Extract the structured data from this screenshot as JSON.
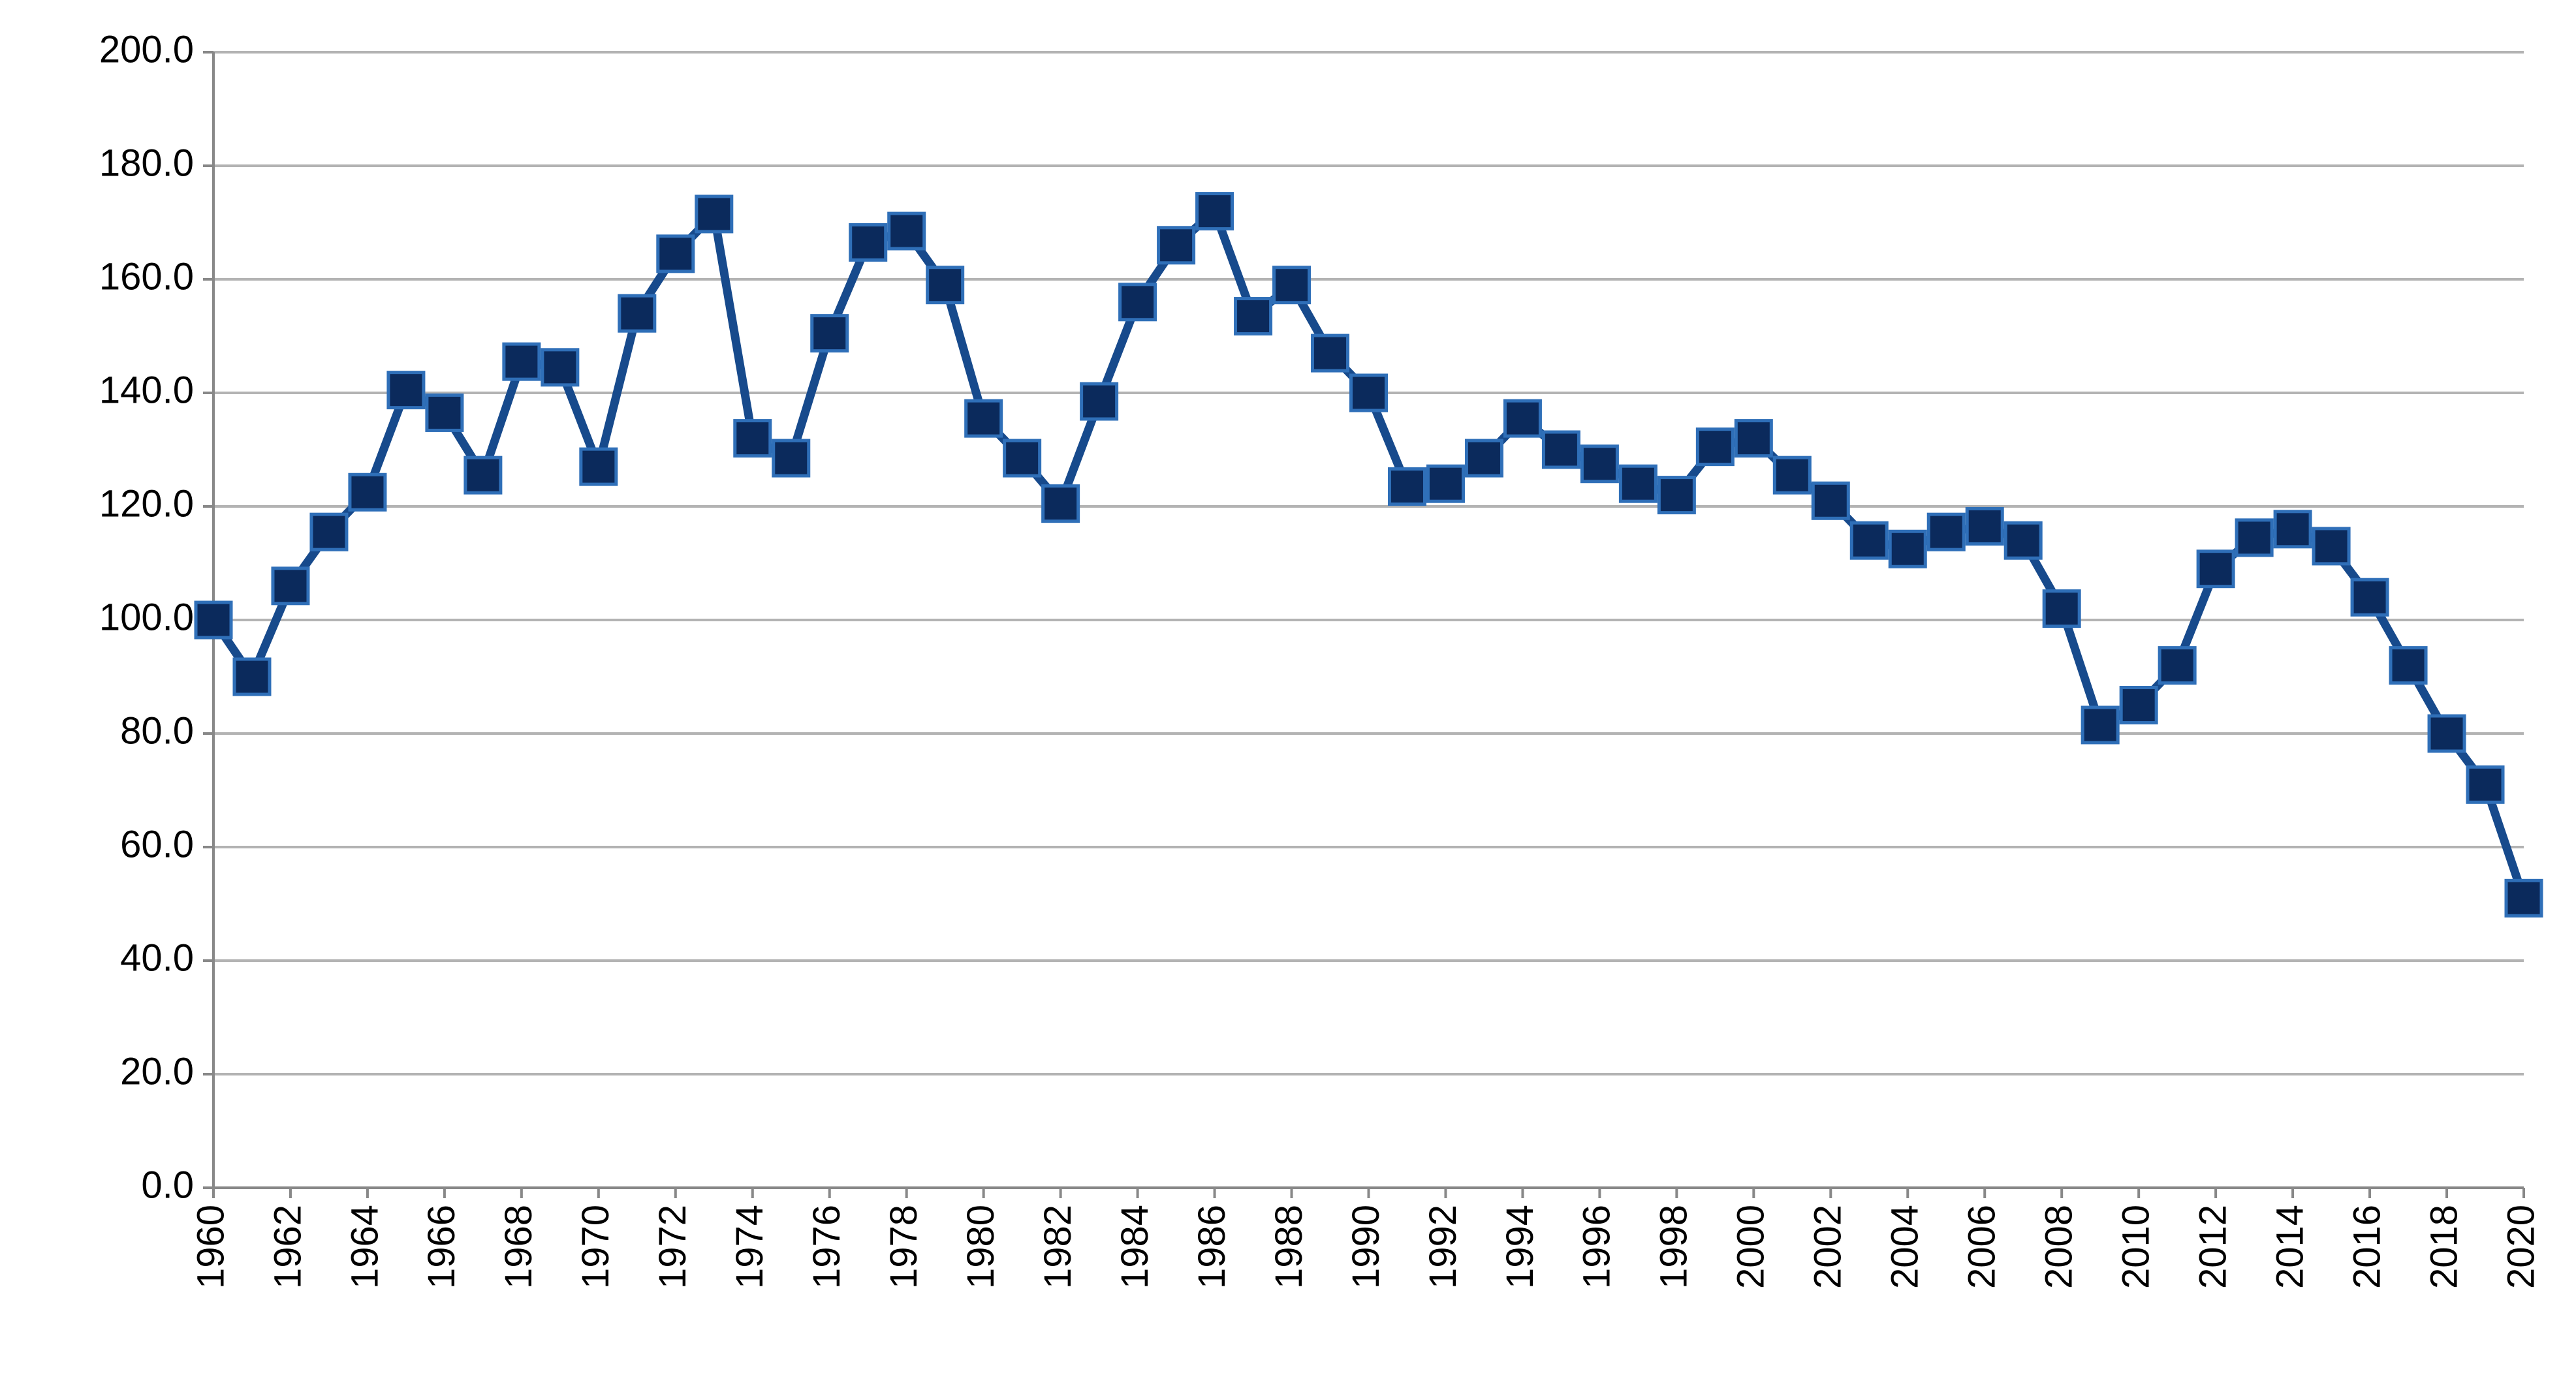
{
  "chart_data": {
    "type": "line",
    "x": [
      1960,
      1961,
      1962,
      1963,
      1964,
      1965,
      1966,
      1967,
      1968,
      1969,
      1970,
      1971,
      1972,
      1973,
      1974,
      1975,
      1976,
      1977,
      1978,
      1979,
      1980,
      1981,
      1982,
      1983,
      1984,
      1985,
      1986,
      1987,
      1988,
      1989,
      1990,
      1991,
      1992,
      1993,
      1994,
      1995,
      1996,
      1997,
      1998,
      1999,
      2000,
      2001,
      2002,
      2003,
      2004,
      2005,
      2006,
      2007,
      2008,
      2009,
      2010,
      2011,
      2012,
      2013,
      2014,
      2015,
      2016,
      2017,
      2018,
      2019,
      2020
    ],
    "series": [
      {
        "color": "#174a8c",
        "values": [
          100,
          90,
          106,
          115.5,
          122.5,
          140.5,
          136.5,
          125.5,
          145.5,
          144.5,
          127,
          154,
          164.5,
          171.5,
          132,
          128.5,
          150.5,
          166.5,
          168.5,
          159,
          135.5,
          128.5,
          120.5,
          138.5,
          156,
          166,
          172,
          153.5,
          159,
          147,
          140,
          123.5,
          124,
          128.5,
          135.5,
          130,
          127.5,
          124,
          122,
          130.5,
          132,
          125.5,
          121,
          114,
          112.5,
          115.5,
          116.5,
          114,
          102,
          81.5,
          85,
          92,
          109,
          114.5,
          116,
          113,
          104,
          92,
          80,
          71,
          51
        ]
      }
    ],
    "xlim": [
      1960,
      2020
    ],
    "xticks": [
      1960,
      1962,
      1964,
      1966,
      1968,
      1970,
      1972,
      1974,
      1976,
      1978,
      1980,
      1982,
      1984,
      1986,
      1988,
      1990,
      1992,
      1994,
      1996,
      1998,
      2000,
      2002,
      2004,
      2006,
      2008,
      2010,
      2012,
      2014,
      2016,
      2018,
      2020
    ],
    "ylim": [
      0,
      200
    ],
    "yticks": [
      {
        "value": 0,
        "label": "0.0"
      },
      {
        "value": 20,
        "label": "20.0"
      },
      {
        "value": 40,
        "label": "40.0"
      },
      {
        "value": 60,
        "label": "60.0"
      },
      {
        "value": 80,
        "label": "80.0"
      },
      {
        "value": 100,
        "label": "100.0"
      },
      {
        "value": 120,
        "label": "120.0"
      },
      {
        "value": 140,
        "label": "140.0"
      },
      {
        "value": 160,
        "label": "160.0"
      },
      {
        "value": 180,
        "label": "180.0"
      },
      {
        "value": 200,
        "label": "200.0"
      }
    ],
    "grid": true
  }
}
